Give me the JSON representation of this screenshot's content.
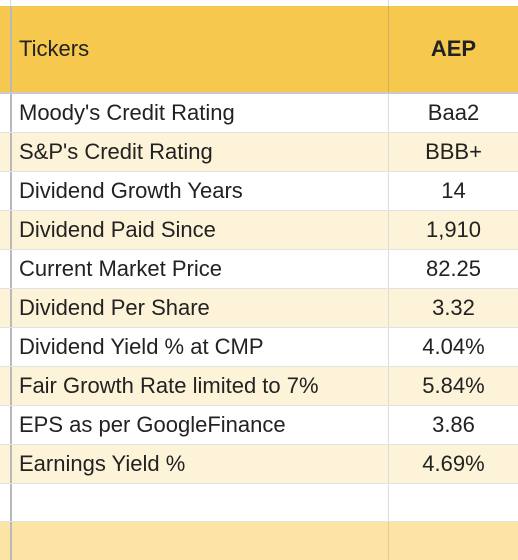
{
  "table": {
    "header": {
      "label": "Tickers",
      "value": "AEP"
    },
    "rows": [
      {
        "label": "Moody's Credit Rating",
        "value": "Baa2"
      },
      {
        "label": "S&P's Credit Rating",
        "value": "BBB+"
      },
      {
        "label": "Dividend Growth Years",
        "value": "14"
      },
      {
        "label": "Dividend Paid Since",
        "value": "1,910"
      },
      {
        "label": "Current Market Price",
        "value": "82.25"
      },
      {
        "label": "Dividend Per Share",
        "value": "3.32"
      },
      {
        "label": "Dividend Yield % at CMP",
        "value": "4.04%"
      },
      {
        "label": "Fair Growth Rate limited to 7%",
        "value": "5.84%"
      },
      {
        "label": "EPS as per GoogleFinance",
        "value": "3.86"
      },
      {
        "label": "Earnings Yield %",
        "value": "4.69%"
      }
    ]
  },
  "colors": {
    "header_bg": "#f6c94e",
    "alt_row_bg": "#fdf3d9",
    "footer_bg": "#fbe4a6"
  }
}
